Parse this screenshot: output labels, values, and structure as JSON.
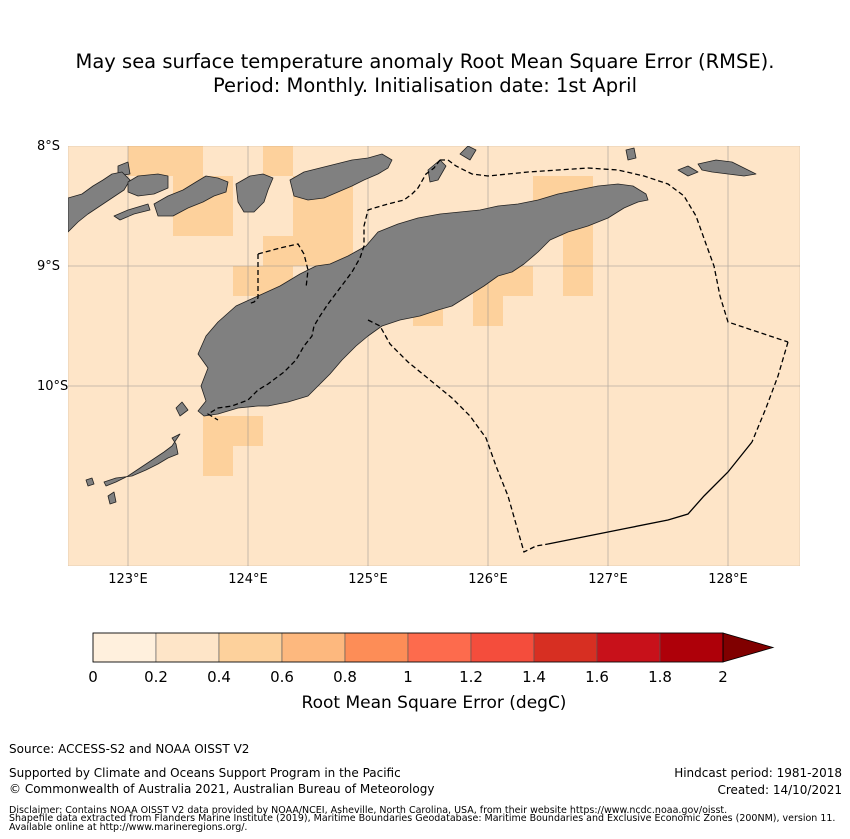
{
  "title": {
    "line1": "May sea surface temperature anomaly Root Mean Square Error (RMSE).",
    "line2": "Period: Monthly. Initialisation date: 1st April"
  },
  "map": {
    "lat_ticks": [
      "8°S",
      "9°S",
      "10°S"
    ],
    "lon_ticks": [
      "123°E",
      "124°E",
      "125°E",
      "126°E",
      "127°E",
      "128°E"
    ],
    "extent": {
      "lon_min": 122.5,
      "lon_max": 128.6,
      "lat_north": -8.0,
      "lat_south": -11.5
    },
    "gridlines": true,
    "colors": {
      "ocean_base": "#fee5c8",
      "land": "#808080",
      "low_bin": "#fdd19c",
      "eez_line": "#000000"
    }
  },
  "colorbar": {
    "ticks": [
      "0",
      "0.2",
      "0.4",
      "0.6",
      "0.8",
      "1",
      "1.2",
      "1.4",
      "1.6",
      "1.8",
      "2"
    ],
    "colors": [
      "#fff0dd",
      "#fee5c8",
      "#fdd19c",
      "#fdb87e",
      "#fd8d57",
      "#fd6b4d",
      "#f44d3c",
      "#d72f22",
      "#c8111a",
      "#ae0009",
      "#800000"
    ],
    "label": "Root Mean Square Error (degC)",
    "extend": "max"
  },
  "footer": {
    "source": "Source: ACCESS-S2 and NOAA OISST V2",
    "support": "Supported by Climate and Oceans Support Program in the Pacific",
    "copyright": "© Commonwealth of Australia 2021, Australian Bureau of Meteorology",
    "hindcast": "Hindcast period: 1981-2018",
    "created": "Created: 14/10/2021",
    "disclaimer1": "Disclaimer: Contains NOAA OISST V2 data provided by NOAA/NCEI, Asheville, North Carolina, USA, from their website https://www.ncdc.noaa.gov/oisst.",
    "disclaimer2": "Shapefile data extracted from Flanders Marine Institute (2019), Maritime Boundaries Geodatabase: Maritime Boundaries and Exclusive Economic Zones (200NM), version 11.",
    "disclaimer3": "Available online at http://www.marineregions.org/."
  }
}
